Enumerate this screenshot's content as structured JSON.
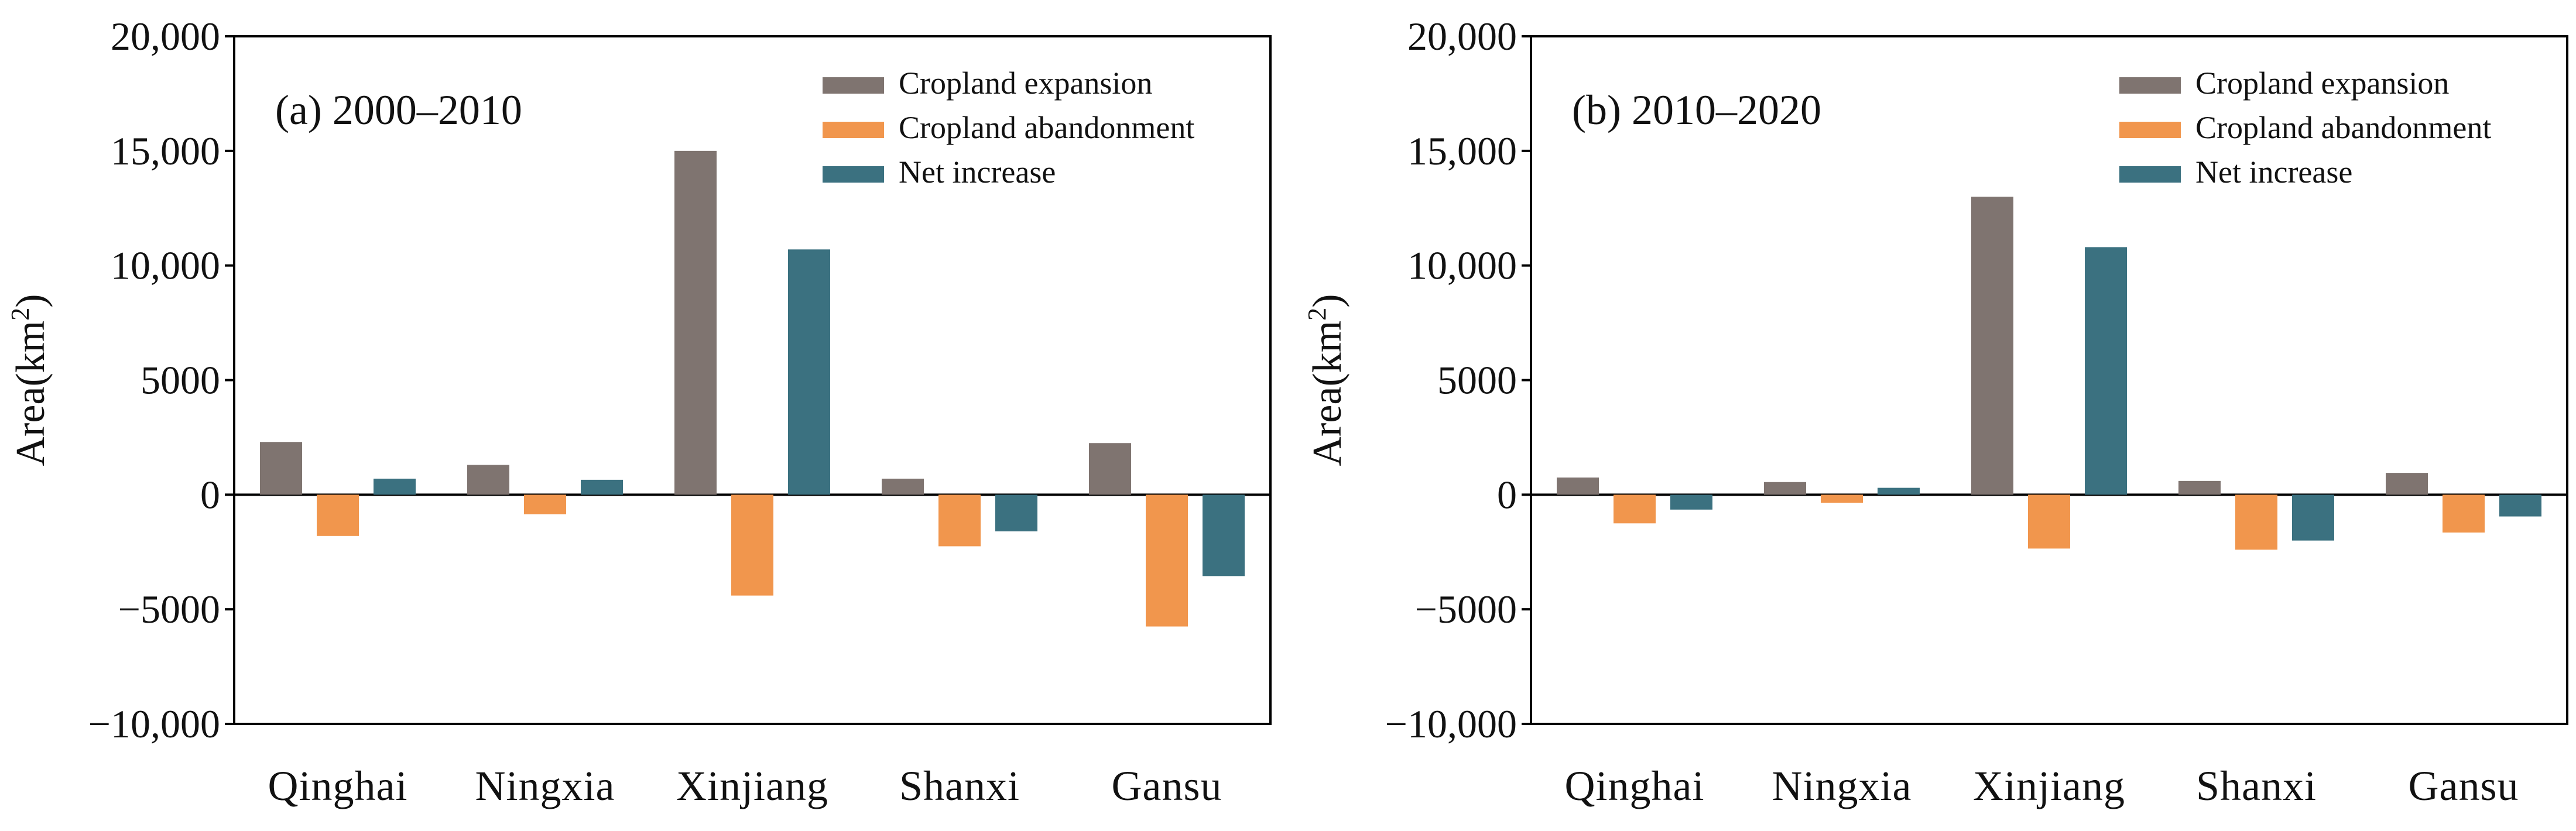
{
  "chart_data": [
    {
      "type": "bar",
      "title": "(a) 2000–2010",
      "ylabel": "Area(km",
      "ylabel_sup": "2",
      "ylabel_close": ")",
      "xlabel": "",
      "ylim": [
        -10000,
        20000
      ],
      "yticks": [
        20000,
        15000,
        10000,
        5000,
        0,
        -5000,
        -10000
      ],
      "ytick_labels": [
        "20,000",
        "15,000",
        "10,000",
        "5000",
        "0",
        "−5000",
        "−10,000"
      ],
      "categories": [
        "Qinghai",
        "Ningxia",
        "Xinjiang",
        "Shanxi",
        "Gansu"
      ],
      "series": [
        {
          "name": "Cropland expansion",
          "color": "#7f7470",
          "values": [
            2300,
            1300,
            15000,
            700,
            2250
          ]
        },
        {
          "name": "Cropland abandonment",
          "color": "#f1964d",
          "values": [
            -1800,
            -850,
            -4400,
            -2250,
            -5750
          ]
        },
        {
          "name": "Net increase",
          "color": "#3b7180",
          "values": [
            700,
            650,
            10700,
            -1600,
            -3550
          ]
        }
      ],
      "legend_position": "top-right",
      "grid": false
    },
    {
      "type": "bar",
      "title": "(b) 2010–2020",
      "ylabel": "Area(km",
      "ylabel_sup": "2",
      "ylabel_close": ")",
      "xlabel": "",
      "ylim": [
        -10000,
        20000
      ],
      "yticks": [
        20000,
        15000,
        10000,
        5000,
        0,
        -5000,
        -10000
      ],
      "ytick_labels": [
        "20,000",
        "15,000",
        "10,000",
        "5000",
        "0",
        "−5000",
        "−10,000"
      ],
      "categories": [
        "Qinghai",
        "Ningxia",
        "Xinjiang",
        "Shanxi",
        "Gansu"
      ],
      "series": [
        {
          "name": "Cropland expansion",
          "color": "#7f7470",
          "values": [
            750,
            550,
            13000,
            600,
            950
          ]
        },
        {
          "name": "Cropland abandonment",
          "color": "#f1964d",
          "values": [
            -1250,
            -350,
            -2350,
            -2400,
            -1650
          ]
        },
        {
          "name": "Net increase",
          "color": "#3b7180",
          "values": [
            -650,
            300,
            10800,
            -2000,
            -950
          ]
        }
      ],
      "legend_position": "top-right",
      "grid": false
    }
  ]
}
